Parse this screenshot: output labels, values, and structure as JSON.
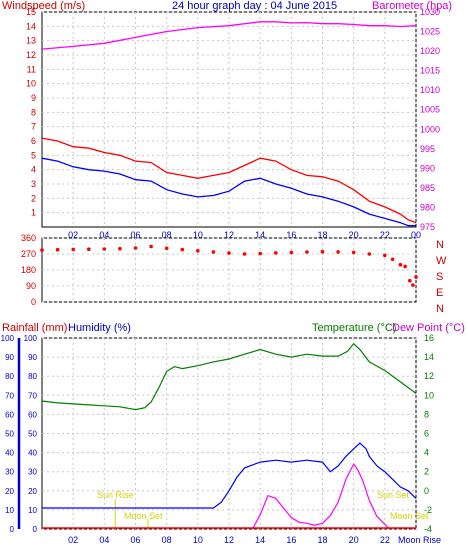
{
  "chart_data": [
    {
      "type": "line",
      "title": "24 hour graph day : 04 June 2015",
      "ylabel_left": "Windspeed (m/s)",
      "ylabel_right": "Barometer (hpa)",
      "x_ticks": [
        "02",
        "04",
        "06",
        "08",
        "10",
        "12",
        "14",
        "16",
        "18",
        "20",
        "22",
        "00"
      ],
      "left_axis": {
        "min": 0,
        "max": 15,
        "ticks": [
          1,
          2,
          3,
          4,
          5,
          6,
          7,
          8,
          9,
          10,
          11,
          12,
          13,
          14,
          15
        ]
      },
      "right_axis": {
        "min": 975,
        "max": 1030,
        "ticks": [
          975,
          980,
          985,
          990,
          995,
          1000,
          1005,
          1010,
          1015,
          1020,
          1025,
          1030
        ]
      },
      "x_range": [
        0,
        24
      ],
      "grid": true,
      "series": [
        {
          "color": "#ff00ff",
          "axis": "right",
          "x": [
            0,
            2,
            4,
            6,
            8,
            10,
            12,
            13,
            14,
            15,
            16,
            17,
            18,
            19,
            20,
            21,
            22,
            23,
            24
          ],
          "values": [
            1020.5,
            1021.2,
            1022,
            1023.5,
            1025,
            1026,
            1026.5,
            1027,
            1027.5,
            1027.5,
            1027.2,
            1027.3,
            1027,
            1027,
            1026.8,
            1026.5,
            1026.5,
            1026.3,
            1026.5
          ]
        },
        {
          "color": "#ff0000",
          "axis": "left",
          "x": [
            0,
            1,
            2,
            3,
            4,
            5,
            6,
            7,
            8,
            9,
            10,
            11,
            12,
            13,
            14,
            15,
            16,
            17,
            18,
            19,
            20,
            21,
            22,
            23,
            23.5,
            24
          ],
          "values": [
            6.2,
            6.0,
            5.6,
            5.5,
            5.2,
            5.0,
            4.6,
            4.5,
            3.8,
            3.6,
            3.4,
            3.6,
            3.8,
            4.3,
            4.8,
            4.6,
            4.0,
            3.6,
            3.5,
            3.2,
            2.6,
            1.8,
            1.4,
            0.9,
            0.5,
            0.3
          ]
        },
        {
          "color": "#0000ff",
          "axis": "left",
          "x": [
            0,
            1,
            2,
            3,
            4,
            5,
            6,
            7,
            8,
            9,
            10,
            11,
            12,
            13,
            14,
            15,
            16,
            17,
            18,
            19,
            20,
            21,
            22,
            23,
            23.5,
            24
          ],
          "values": [
            4.8,
            4.6,
            4.2,
            4.0,
            3.9,
            3.7,
            3.3,
            3.2,
            2.6,
            2.3,
            2.1,
            2.2,
            2.5,
            3.2,
            3.4,
            3.0,
            2.7,
            2.3,
            2.1,
            1.8,
            1.4,
            0.9,
            0.6,
            0.3,
            0.1,
            0.1
          ]
        }
      ]
    },
    {
      "type": "scatter",
      "y_ticks": [
        0,
        90,
        180,
        270,
        360
      ],
      "y_range": [
        0,
        360
      ],
      "compass": [
        "N",
        "W",
        "S",
        "E",
        "N"
      ],
      "x_range": [
        0,
        24
      ],
      "color": "#ff0000",
      "x": [
        0,
        1,
        2,
        3,
        4,
        5,
        6,
        7,
        8,
        9,
        10,
        11,
        12,
        13,
        14,
        15,
        16,
        17,
        18,
        19,
        20,
        21,
        22,
        22.5,
        23,
        23.3,
        23.6,
        23.8,
        24
      ],
      "values": [
        292,
        294,
        296,
        297,
        298,
        300,
        304,
        312,
        302,
        295,
        288,
        282,
        275,
        270,
        272,
        276,
        279,
        281,
        283,
        282,
        279,
        270,
        262,
        240,
        210,
        200,
        120,
        95,
        140
      ]
    },
    {
      "type": "line",
      "ylabel_left_1": "Rainfall (mm)",
      "ylabel_left_2": "Humidity (%)",
      "ylabel_right_1": "Temperature (°C)",
      "ylabel_right_2": "Dew Point (°C)",
      "left_axis_outer": {
        "min": 0,
        "max": 100,
        "ticks": [
          0,
          10,
          20,
          30,
          40,
          50,
          60,
          70,
          80,
          90,
          100
        ]
      },
      "left_axis_inner": {
        "min": 0,
        "max": 100,
        "ticks": [
          0,
          10,
          20,
          30,
          40,
          50,
          60,
          70,
          80,
          90,
          100
        ]
      },
      "right_axis": {
        "min": -4,
        "max": 16,
        "ticks": [
          -4,
          -2,
          0,
          2,
          4,
          6,
          8,
          10,
          12,
          14,
          16
        ]
      },
      "x_ticks": [
        "02",
        "04",
        "06",
        "08",
        "10",
        "12",
        "14",
        "16",
        "18",
        "20",
        "22",
        "Moon Rise"
      ],
      "x_range": [
        0,
        24
      ],
      "grid": true,
      "series": [
        {
          "color": "#008000",
          "axis": "right",
          "x": [
            0,
            1,
            2,
            3,
            4,
            5,
            6,
            6.6,
            7,
            7.5,
            8,
            8.5,
            9,
            10,
            11,
            12,
            13,
            14,
            15,
            16,
            17,
            18,
            19,
            19.6,
            20,
            20.4,
            21,
            22,
            23,
            24
          ],
          "values": [
            9.4,
            9.2,
            9.1,
            9.0,
            8.9,
            8.8,
            8.5,
            8.7,
            9.3,
            10.8,
            12.5,
            13.0,
            12.8,
            13.1,
            13.5,
            13.8,
            14.3,
            14.8,
            14.3,
            14.0,
            14.3,
            14.1,
            14.1,
            14.6,
            15.4,
            14.8,
            13.5,
            12.6,
            11.4,
            10.2
          ]
        },
        {
          "color": "#0000ff",
          "axis": "left",
          "x": [
            0,
            2,
            4,
            6,
            8,
            10,
            11,
            11.5,
            12,
            12.5,
            13,
            14,
            15,
            16,
            17,
            18,
            18.5,
            19,
            19.5,
            20,
            20.4,
            20.8,
            21,
            21.5,
            22,
            22.5,
            23,
            23.5,
            24
          ],
          "values": [
            11,
            11,
            11,
            11,
            11,
            11,
            11,
            14,
            20,
            27,
            32,
            35,
            36,
            35,
            36,
            35,
            30,
            33,
            38,
            42,
            45,
            42,
            38,
            33,
            30,
            26,
            22,
            20,
            16
          ]
        },
        {
          "color": "#ff00ff",
          "axis": "right",
          "x": [
            13.5,
            14,
            14.5,
            15,
            15.5,
            16,
            16.5,
            17,
            17.5,
            18,
            18.5,
            19,
            19.5,
            20,
            20.3,
            20.6,
            21,
            21.5,
            22,
            22.3
          ],
          "values": [
            -4,
            -2.5,
            -0.5,
            -0.8,
            -1.8,
            -2.8,
            -3.3,
            -3.4,
            -3.6,
            -3.4,
            -2.6,
            -1.2,
            1.2,
            2.8,
            2.1,
            1.0,
            -1.0,
            -2.7,
            -3.5,
            -4
          ]
        }
      ],
      "annotations": [
        "Sun Rise",
        "Moon Set",
        "Sun Set",
        "Moon Set"
      ]
    }
  ],
  "colors": {
    "axis_red": "#cc0000",
    "axis_magenta": "#cc00cc",
    "axis_blue": "#0000cc",
    "axis_green": "#008000",
    "annotation_yellow": "#d4d400",
    "grid_dash": "#c8c8c8"
  }
}
